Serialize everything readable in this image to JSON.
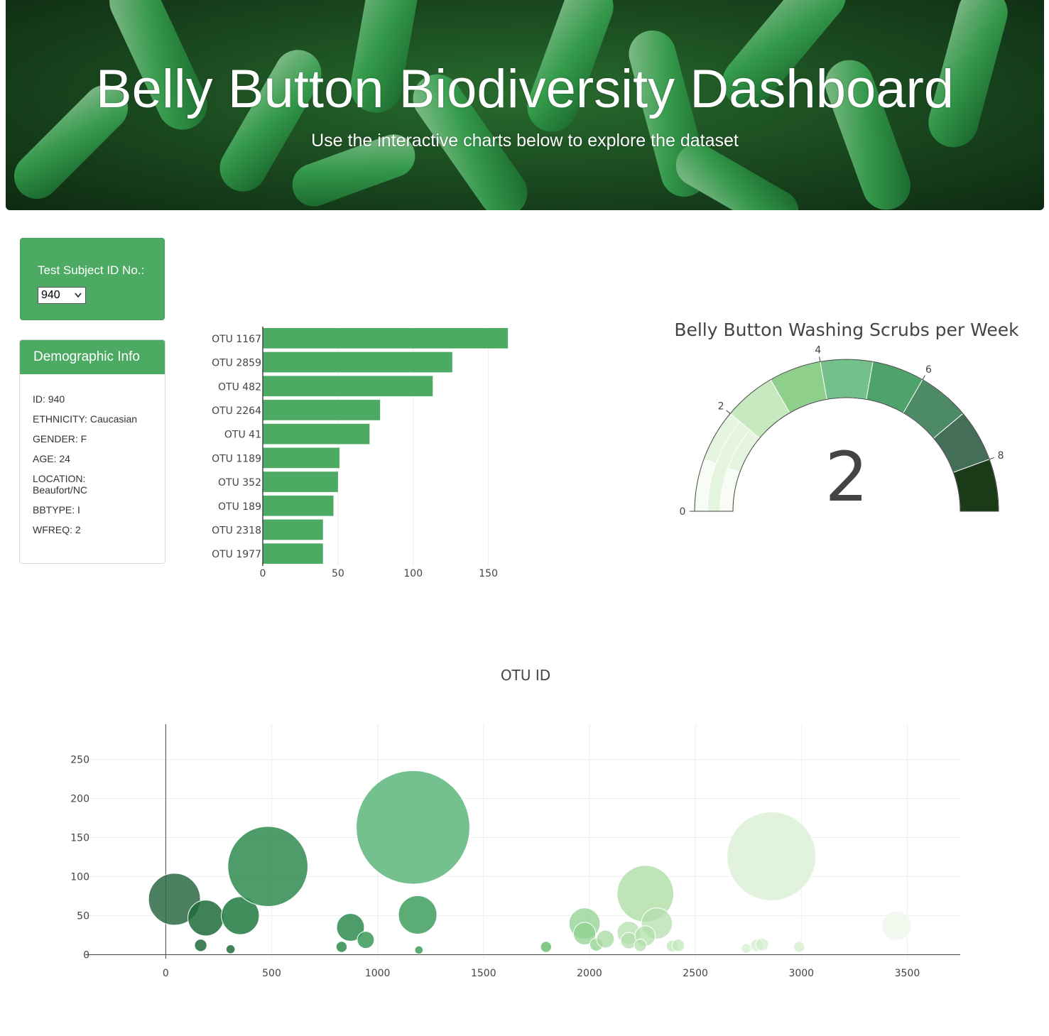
{
  "header": {
    "title": "Belly Button Biodiversity Dashboard",
    "subtitle": "Use the interactive charts below to explore the dataset"
  },
  "selector": {
    "label": "Test Subject ID No.:",
    "selected": "940"
  },
  "demographics": {
    "heading": "Demographic Info",
    "lines": [
      "ID: 940",
      "ETHNICITY: Caucasian",
      "GENDER: F",
      "AGE: 24",
      "LOCATION: Beaufort/NC",
      "BBTYPE: I",
      "WFREQ: 2"
    ]
  },
  "colors": {
    "accent": "#4caa63",
    "bar": "#4caa63"
  },
  "icons": {
    "dropdown": "chevron-down-icon"
  },
  "chart_data": [
    {
      "type": "bar",
      "orientation": "horizontal",
      "categories": [
        "OTU 1167",
        "OTU 2859",
        "OTU 482",
        "OTU 2264",
        "OTU 41",
        "OTU 1189",
        "OTU 352",
        "OTU 189",
        "OTU 2318",
        "OTU 1977"
      ],
      "values": [
        163,
        126,
        113,
        78,
        71,
        51,
        50,
        47,
        40,
        40
      ],
      "xlim": [
        0,
        170
      ],
      "xticks": [
        0,
        50,
        100,
        150
      ],
      "grid": true
    },
    {
      "type": "gauge",
      "title": "Belly Button Washing Scrubs per Week",
      "value": 2,
      "range": [
        0,
        9
      ],
      "tick_labels": [
        "0",
        "2",
        "4",
        "6",
        "8"
      ],
      "ticks": [
        0,
        2,
        4,
        6,
        8
      ],
      "steps": [
        {
          "range": [
            0,
            1
          ],
          "color": "#f7fcf5"
        },
        {
          "range": [
            1,
            2
          ],
          "color": "#e5f5e0"
        },
        {
          "range": [
            2,
            3
          ],
          "color": "#c7e9c0"
        },
        {
          "range": [
            3,
            4
          ],
          "color": "#8ed08b"
        },
        {
          "range": [
            4,
            5
          ],
          "color": "#74c08b"
        },
        {
          "range": [
            5,
            6
          ],
          "color": "#4da36a"
        },
        {
          "range": [
            6,
            7
          ],
          "color": "#4b8a64"
        },
        {
          "range": [
            7,
            8
          ],
          "color": "#446e57"
        },
        {
          "range": [
            8,
            9
          ],
          "color": "#1b3a18"
        }
      ],
      "bar_color": "#e5f5e0"
    },
    {
      "type": "scatter",
      "mode": "bubble",
      "xlabel": "OTU ID",
      "xlim": [
        -380,
        3750
      ],
      "ylim": [
        -5,
        295
      ],
      "xticks": [
        0,
        500,
        1000,
        1500,
        2000,
        2500,
        3000,
        3500
      ],
      "yticks": [
        0,
        50,
        100,
        150,
        200,
        250
      ],
      "grid": true,
      "points": [
        {
          "x": 41,
          "y": 71,
          "color": "#2d6a45",
          "opacity": 0.85
        },
        {
          "x": 189,
          "y": 47,
          "color": "#1e6b3a",
          "opacity": 0.85
        },
        {
          "x": 352,
          "y": 50,
          "color": "#1e7a3e",
          "opacity": 0.85
        },
        {
          "x": 482,
          "y": 113,
          "color": "#2f8b50",
          "opacity": 0.85
        },
        {
          "x": 165,
          "y": 12,
          "color": "#1e6b3a",
          "opacity": 0.85
        },
        {
          "x": 306,
          "y": 7,
          "color": "#1e6b3a",
          "opacity": 0.85
        },
        {
          "x": 1167,
          "y": 163,
          "color": "#5cb57a",
          "opacity": 0.85
        },
        {
          "x": 1189,
          "y": 51,
          "color": "#3f9f5d",
          "opacity": 0.85
        },
        {
          "x": 872,
          "y": 35,
          "color": "#2f8b50",
          "opacity": 0.85
        },
        {
          "x": 944,
          "y": 19,
          "color": "#3a9a58",
          "opacity": 0.85
        },
        {
          "x": 830,
          "y": 10,
          "color": "#2f8b50",
          "opacity": 0.85
        },
        {
          "x": 1195,
          "y": 6,
          "color": "#3f9f5d",
          "opacity": 0.85
        },
        {
          "x": 1795,
          "y": 10,
          "color": "#6cbf74",
          "opacity": 0.85
        },
        {
          "x": 1977,
          "y": 40,
          "color": "#8fd08f",
          "opacity": 0.75
        },
        {
          "x": 1977,
          "y": 27,
          "color": "#8fd08f",
          "opacity": 0.75
        },
        {
          "x": 2032,
          "y": 13,
          "color": "#8fd08f",
          "opacity": 0.75
        },
        {
          "x": 2075,
          "y": 20,
          "color": "#a5d8a0",
          "opacity": 0.75
        },
        {
          "x": 2264,
          "y": 78,
          "color": "#b3dfac",
          "opacity": 0.85
        },
        {
          "x": 2185,
          "y": 28,
          "color": "#b3dfac",
          "opacity": 0.75
        },
        {
          "x": 2186,
          "y": 18,
          "color": "#b3dfac",
          "opacity": 0.75
        },
        {
          "x": 2318,
          "y": 40,
          "color": "#b3dfac",
          "opacity": 0.75
        },
        {
          "x": 2263,
          "y": 24,
          "color": "#b3dfac",
          "opacity": 0.75
        },
        {
          "x": 2240,
          "y": 12,
          "color": "#b3dfac",
          "opacity": 0.75
        },
        {
          "x": 2390,
          "y": 11,
          "color": "#bfe5b9",
          "opacity": 0.75
        },
        {
          "x": 2419,
          "y": 12,
          "color": "#bfe5b9",
          "opacity": 0.75
        },
        {
          "x": 2859,
          "y": 126,
          "color": "#dcf0d7",
          "opacity": 0.85
        },
        {
          "x": 2740,
          "y": 8,
          "color": "#d4edce",
          "opacity": 0.75
        },
        {
          "x": 2790,
          "y": 12,
          "color": "#d4edce",
          "opacity": 0.75
        },
        {
          "x": 2815,
          "y": 13,
          "color": "#d4edce",
          "opacity": 0.75
        },
        {
          "x": 2990,
          "y": 10,
          "color": "#d4edce",
          "opacity": 0.75
        },
        {
          "x": 3450,
          "y": 37,
          "color": "#eef8eb",
          "opacity": 0.85
        }
      ]
    }
  ]
}
